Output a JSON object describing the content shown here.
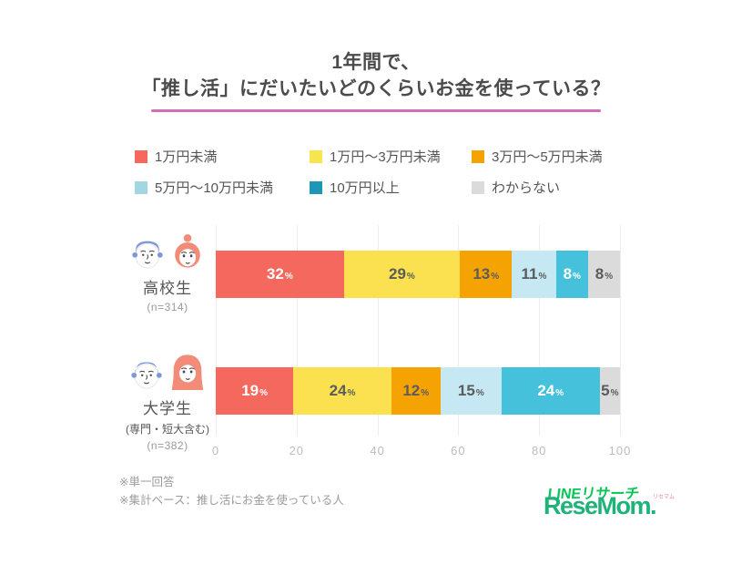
{
  "title": {
    "line1": "1年間で、",
    "line2": "「推し活」にだいたいどのくらいお金を使っている？",
    "underline_color": "#D36EB6"
  },
  "chart_data": {
    "type": "bar",
    "stacked": true,
    "orientation": "horizontal",
    "categories": [
      "高校生",
      "大学生"
    ],
    "category_sublabels": [
      "",
      "(専門・短大含む)"
    ],
    "sample_sizes": [
      "(n=314)",
      "(n=382)"
    ],
    "series": [
      {
        "name": "1万円未満",
        "color": "#F5685D",
        "legend_color": "#F5685D",
        "text_color": "#FFFFFF",
        "values": [
          32,
          19
        ]
      },
      {
        "name": "1万円～3万円未満",
        "color": "#FBE14F",
        "legend_color": "#F8E44C",
        "text_color": "#5B5B5B",
        "values": [
          29,
          24
        ]
      },
      {
        "name": "3万円～5万円未満",
        "color": "#F5A302",
        "legend_color": "#F5A302",
        "text_color": "#5B5B5B",
        "values": [
          13,
          12
        ]
      },
      {
        "name": "5万円～10万円未満",
        "color": "#C5E8F3",
        "legend_color": "#A2D7E2",
        "text_color": "#5B5B5B",
        "values": [
          11,
          15
        ]
      },
      {
        "name": "10万円以上",
        "color": "#45C1DC",
        "legend_color": "#1E96B5",
        "text_color": "#FFFFFF",
        "values": [
          8,
          24
        ]
      },
      {
        "name": "わからない",
        "color": "#DBDBDB",
        "legend_color": "#DBDBDB",
        "text_color": "#5B5B5B",
        "values": [
          8,
          5
        ]
      }
    ],
    "x_ticks": [
      "0",
      "20",
      "40",
      "60",
      "80",
      "100"
    ],
    "xlim": [
      0,
      100
    ],
    "value_suffix": "%",
    "grid": true,
    "legend_position": "top"
  },
  "footnotes": [
    "※単一回答",
    "※集計ベース：推し活にお金を使っている人"
  ],
  "logos": {
    "line_research": "LINEリサーチ",
    "resemom": "ReseMom.",
    "resemom_ruby": "リセマム"
  }
}
